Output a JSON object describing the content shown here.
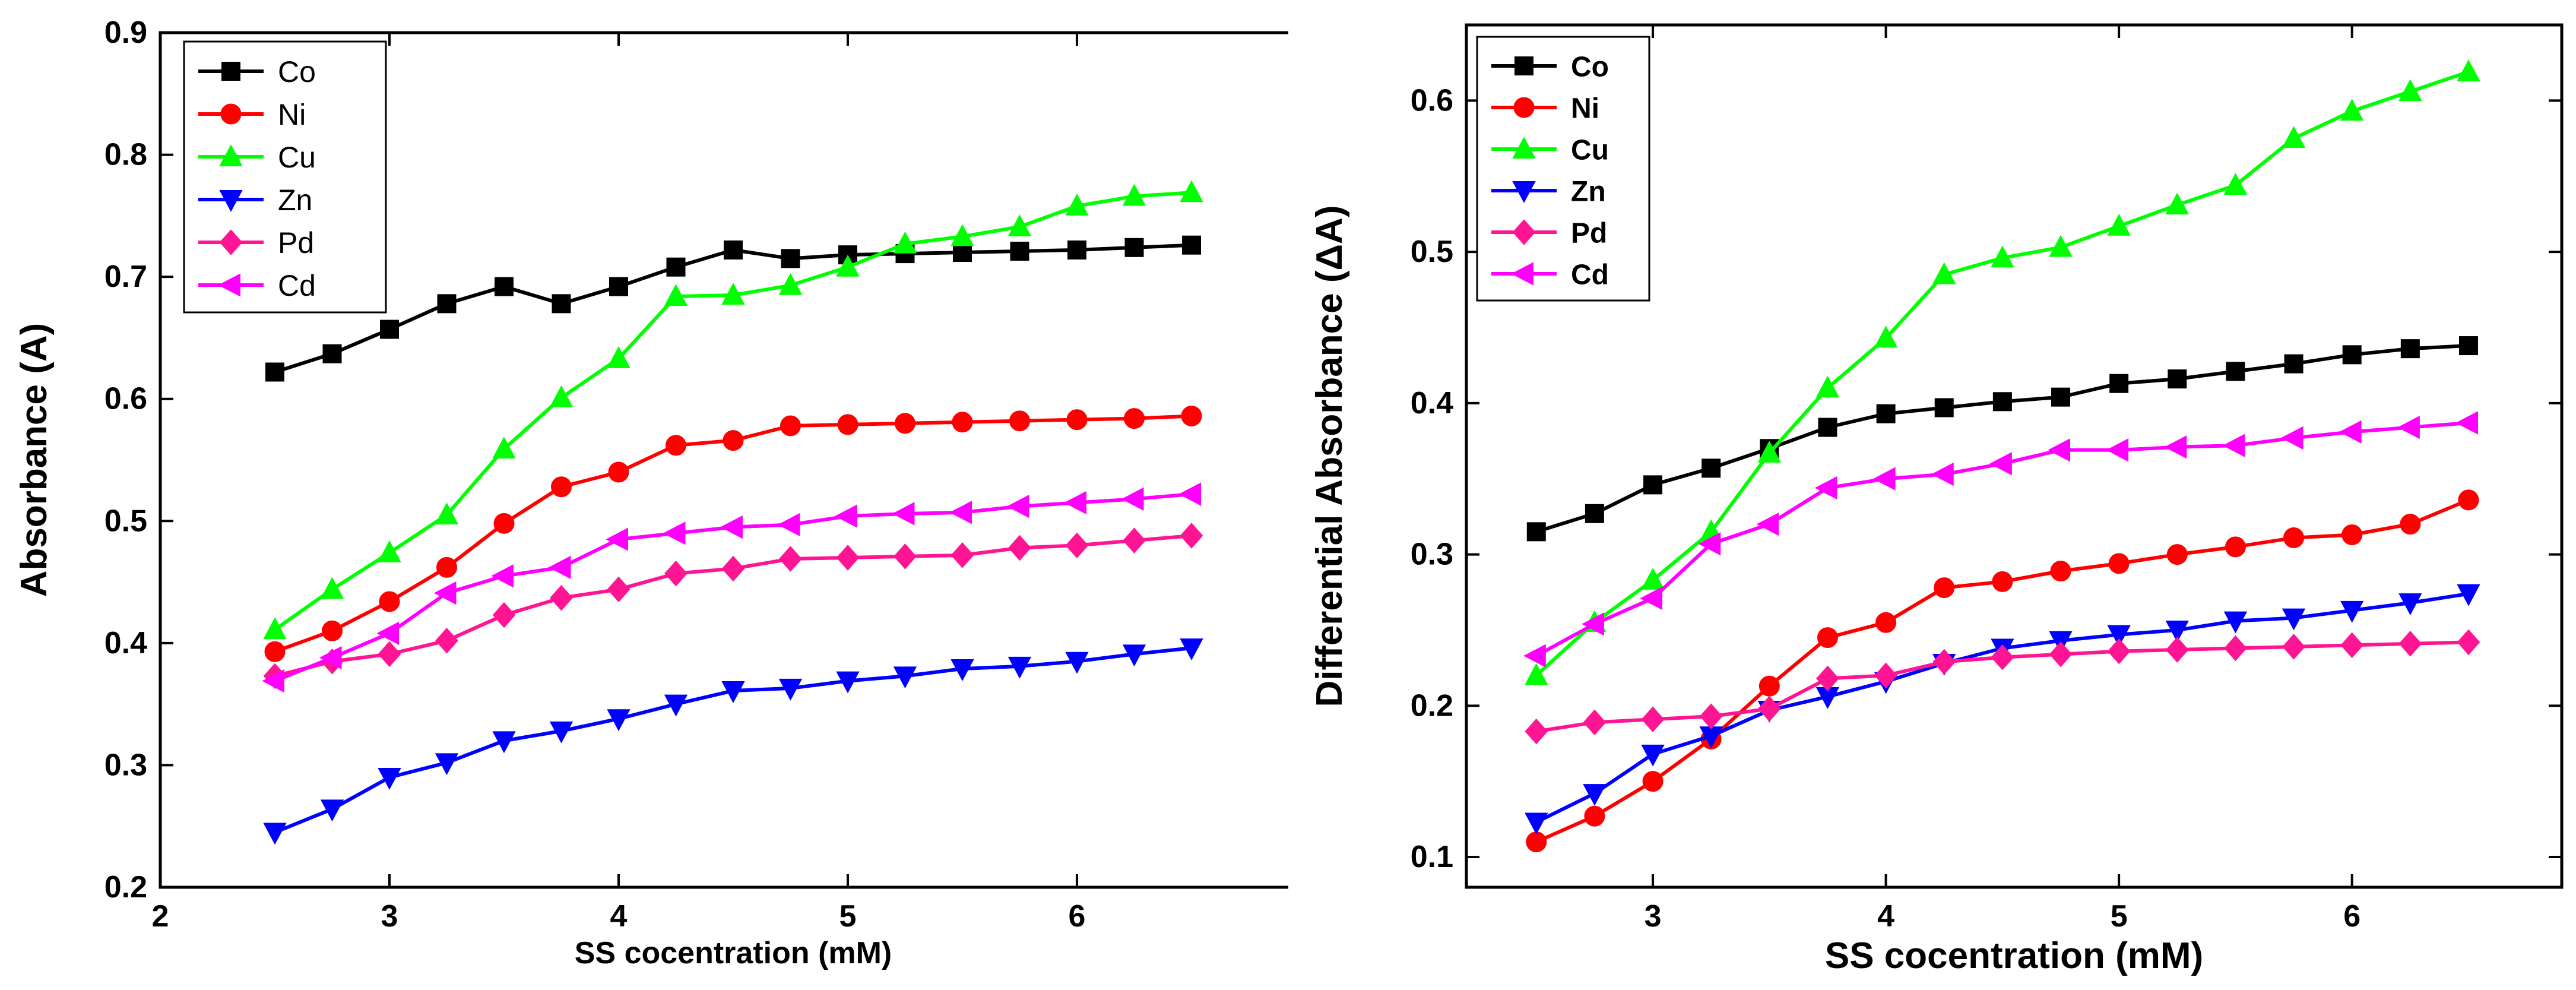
{
  "chart_data": [
    {
      "type": "line",
      "ylabel": "Absorbance (A)",
      "xlabel": "SS cocentration (mM)",
      "xlim": [
        2,
        7
      ],
      "ylim": [
        0.2,
        0.9
      ],
      "xticks": [
        "2",
        "3",
        "4",
        "5",
        "6"
      ],
      "yticks": [
        "0.2",
        "0.3",
        "0.4",
        "0.5",
        "0.6",
        "0.7",
        "0.8",
        "0.9"
      ],
      "x": [
        2.5,
        2.75,
        3.0,
        3.25,
        3.5,
        3.75,
        4.0,
        4.25,
        4.5,
        4.75,
        5.0,
        5.25,
        5.5,
        5.75,
        6.0,
        6.25,
        6.5
      ],
      "series": [
        {
          "name": "Co",
          "color": "#000000",
          "marker": "square",
          "values": [
            0.622,
            0.637,
            0.657,
            0.678,
            0.692,
            0.678,
            0.692,
            0.708,
            0.722,
            0.715,
            0.718,
            0.719,
            0.72,
            0.721,
            0.722,
            0.724,
            0.726
          ]
        },
        {
          "name": "Ni",
          "color": "#ff0000",
          "marker": "circle",
          "values": [
            0.393,
            0.41,
            0.434,
            0.462,
            0.498,
            0.528,
            0.54,
            0.562,
            0.566,
            0.578,
            0.579,
            0.58,
            0.581,
            0.582,
            0.583,
            0.584,
            0.586
          ]
        },
        {
          "name": "Cu",
          "color": "#00ff00",
          "marker": "triangle-up",
          "values": [
            0.411,
            0.444,
            0.474,
            0.505,
            0.559,
            0.601,
            0.633,
            0.684,
            0.685,
            0.693,
            0.708,
            0.727,
            0.733,
            0.741,
            0.758,
            0.766,
            0.769
          ]
        },
        {
          "name": "Zn",
          "color": "#0000ff",
          "marker": "triangle-down",
          "values": [
            0.245,
            0.264,
            0.29,
            0.302,
            0.32,
            0.328,
            0.338,
            0.35,
            0.361,
            0.363,
            0.369,
            0.373,
            0.379,
            0.381,
            0.385,
            0.391,
            0.396
          ]
        },
        {
          "name": "Pd",
          "color": "#ff1493",
          "marker": "diamond",
          "values": [
            0.373,
            0.385,
            0.391,
            0.402,
            0.423,
            0.437,
            0.444,
            0.457,
            0.461,
            0.469,
            0.47,
            0.471,
            0.472,
            0.478,
            0.48,
            0.484,
            0.488
          ]
        },
        {
          "name": "Cd",
          "color": "#ff00ff",
          "marker": "triangle-left",
          "values": [
            0.369,
            0.388,
            0.408,
            0.441,
            0.455,
            0.462,
            0.485,
            0.49,
            0.495,
            0.497,
            0.504,
            0.506,
            0.507,
            0.512,
            0.515,
            0.518,
            0.522
          ]
        }
      ]
    },
    {
      "type": "line",
      "ylabel": "Differential Absorbance (ΔA)",
      "xlabel": "SS cocentration (mM)",
      "xlim": [
        2.2,
        6.9
      ],
      "ylim": [
        0.08,
        0.65
      ],
      "xticks": [
        "3",
        "4",
        "5",
        "6"
      ],
      "yticks": [
        "0.1",
        "0.2",
        "0.3",
        "0.4",
        "0.5",
        "0.6"
      ],
      "x": [
        2.5,
        2.75,
        3.0,
        3.25,
        3.5,
        3.75,
        4.0,
        4.25,
        4.5,
        4.75,
        5.0,
        5.25,
        5.5,
        5.75,
        6.0,
        6.25,
        6.5
      ],
      "series": [
        {
          "name": "Co",
          "color": "#000000",
          "marker": "square",
          "values": [
            0.315,
            0.327,
            0.346,
            0.357,
            0.37,
            0.384,
            0.393,
            0.397,
            0.401,
            0.404,
            0.413,
            0.416,
            0.421,
            0.426,
            0.432,
            0.436,
            0.438
          ]
        },
        {
          "name": "Ni",
          "color": "#ff0000",
          "marker": "circle",
          "values": [
            0.11,
            0.127,
            0.15,
            0.178,
            0.213,
            0.245,
            0.255,
            0.278,
            0.282,
            0.289,
            0.294,
            0.3,
            0.305,
            0.311,
            0.313,
            0.32,
            0.336
          ]
        },
        {
          "name": "Cu",
          "color": "#00ff00",
          "marker": "triangle-up",
          "values": [
            0.22,
            0.255,
            0.283,
            0.315,
            0.367,
            0.41,
            0.443,
            0.485,
            0.496,
            0.503,
            0.517,
            0.531,
            0.544,
            0.575,
            0.593,
            0.606,
            0.619
          ]
        },
        {
          "name": "Zn",
          "color": "#0000ff",
          "marker": "triangle-down",
          "values": [
            0.123,
            0.142,
            0.168,
            0.18,
            0.197,
            0.206,
            0.216,
            0.228,
            0.238,
            0.243,
            0.247,
            0.25,
            0.256,
            0.258,
            0.263,
            0.268,
            0.274
          ]
        },
        {
          "name": "Pd",
          "color": "#ff1493",
          "marker": "diamond",
          "values": [
            0.183,
            0.189,
            0.191,
            0.193,
            0.198,
            0.218,
            0.22,
            0.229,
            0.232,
            0.234,
            0.236,
            0.237,
            0.238,
            0.239,
            0.24,
            0.241,
            0.242
          ]
        },
        {
          "name": "Cd",
          "color": "#ff00ff",
          "marker": "triangle-left",
          "values": [
            0.233,
            0.254,
            0.271,
            0.307,
            0.32,
            0.344,
            0.35,
            0.353,
            0.36,
            0.369,
            0.369,
            0.371,
            0.372,
            0.377,
            0.381,
            0.384,
            0.387
          ]
        }
      ]
    }
  ]
}
